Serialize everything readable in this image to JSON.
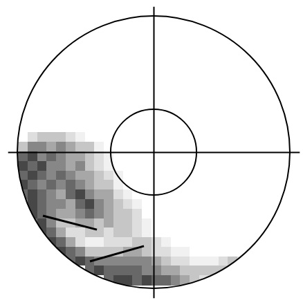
{
  "chart_data": {
    "type": "polar_heatmap",
    "xlim": [
      -1.07,
      1.07
    ],
    "ylim": [
      -1.07,
      1.07
    ],
    "xticks": [
      0
    ],
    "yticks": [
      0
    ],
    "tick_labels": false,
    "circles": [
      1,
      0.315
    ],
    "cells": {
      "x": [
        -0.96,
        -0.89,
        -0.82,
        -0.75,
        -0.68,
        -0.61,
        -0.54,
        -0.47,
        -0.4,
        -0.33,
        -0.26,
        -0.19,
        -0.12,
        -0.05,
        0.02,
        0.09,
        0.16,
        0.23,
        0.3,
        0.37,
        0.44,
        0.51,
        0.58,
        0.65
      ],
      "y": [
        0.11,
        0.04,
        -0.03,
        -0.1,
        -0.17,
        -0.24,
        -0.31,
        -0.38,
        -0.45,
        -0.52,
        -0.59,
        -0.66,
        -0.73,
        -0.8,
        -0.87,
        -0.94
      ],
      "zlim": [
        0,
        9
      ],
      "values": [
        [
          0,
          2,
          3,
          3,
          3,
          2,
          1,
          0,
          0,
          0,
          0,
          0,
          0,
          0,
          0,
          0,
          0,
          0,
          0,
          0,
          0,
          0,
          0,
          0
        ],
        [
          3,
          5,
          5,
          4,
          5,
          4,
          3,
          3,
          1,
          0,
          0,
          0,
          0,
          0,
          0,
          0,
          0,
          0,
          0,
          0,
          0,
          0,
          0,
          0
        ],
        [
          6,
          7,
          5,
          6,
          5,
          4,
          4,
          3,
          2,
          1,
          0,
          0,
          0,
          0,
          0,
          0,
          0,
          0,
          0,
          0,
          0,
          0,
          0,
          0
        ],
        [
          7,
          6,
          7,
          5,
          5,
          4,
          5,
          3,
          2,
          1,
          0,
          0,
          0,
          0,
          0,
          0,
          0,
          0,
          0,
          0,
          0,
          0,
          0,
          0
        ],
        [
          6,
          7,
          6,
          5,
          6,
          5,
          4,
          4,
          3,
          2,
          1,
          0,
          0,
          0,
          0,
          0,
          0,
          0,
          0,
          0,
          0,
          0,
          0,
          0
        ],
        [
          7,
          6,
          5,
          6,
          5,
          6,
          5,
          4,
          3,
          3,
          1,
          0,
          0,
          0,
          0,
          0,
          0,
          0,
          0,
          0,
          0,
          0,
          0,
          0
        ],
        [
          6,
          7,
          6,
          5,
          4,
          6,
          7,
          5,
          4,
          4,
          2,
          1,
          0,
          0,
          0,
          0,
          0,
          0,
          0,
          0,
          0,
          0,
          0,
          0
        ],
        [
          5,
          7,
          6,
          5,
          5,
          4,
          6,
          7,
          5,
          4,
          3,
          2,
          1,
          0,
          0,
          0,
          0,
          0,
          0,
          0,
          0,
          0,
          0,
          0
        ],
        [
          0,
          7,
          6,
          5,
          4,
          4,
          5,
          6,
          5,
          4,
          3,
          3,
          2,
          0,
          0,
          0,
          0,
          0,
          0,
          0,
          0,
          0,
          0,
          0
        ],
        [
          0,
          6,
          7,
          5,
          3,
          3,
          4,
          4,
          3,
          4,
          3,
          3,
          2,
          1,
          0,
          0,
          0,
          0,
          0,
          0,
          0,
          0,
          0,
          0
        ],
        [
          0,
          0,
          7,
          6,
          4,
          2,
          2,
          3,
          3,
          2,
          3,
          3,
          2,
          1,
          0,
          0,
          0,
          0,
          0,
          0,
          0,
          0,
          0,
          0
        ],
        [
          0,
          0,
          0,
          7,
          6,
          4,
          2,
          1,
          1,
          2,
          2,
          2,
          3,
          3,
          2,
          1,
          0,
          0,
          0,
          0,
          0,
          0,
          0,
          0
        ],
        [
          0,
          0,
          0,
          0,
          7,
          6,
          5,
          3,
          3,
          3,
          3,
          4,
          4,
          3,
          2,
          2,
          1,
          1,
          0,
          0,
          0,
          0,
          0,
          0
        ],
        [
          0,
          0,
          0,
          0,
          0,
          6,
          7,
          6,
          5,
          5,
          5,
          5,
          5,
          5,
          4,
          3,
          2,
          2,
          1,
          1,
          1,
          2,
          3,
          2
        ],
        [
          0,
          0,
          0,
          0,
          0,
          0,
          0,
          6,
          7,
          6,
          6,
          6,
          6,
          5,
          5,
          4,
          4,
          3,
          3,
          3,
          3,
          3,
          2,
          0
        ],
        [
          0,
          0,
          0,
          0,
          0,
          0,
          0,
          0,
          0,
          6,
          7,
          7,
          6,
          7,
          6,
          6,
          5,
          4,
          3,
          2,
          0,
          0,
          0,
          0
        ]
      ]
    },
    "segments": [
      {
        "x": [
          -0.812,
          -0.416
        ],
        "y": [
          -0.467,
          -0.569
        ]
      },
      {
        "x": [
          -0.467,
          -0.071
        ],
        "y": [
          -0.802,
          -0.69
        ]
      }
    ]
  }
}
